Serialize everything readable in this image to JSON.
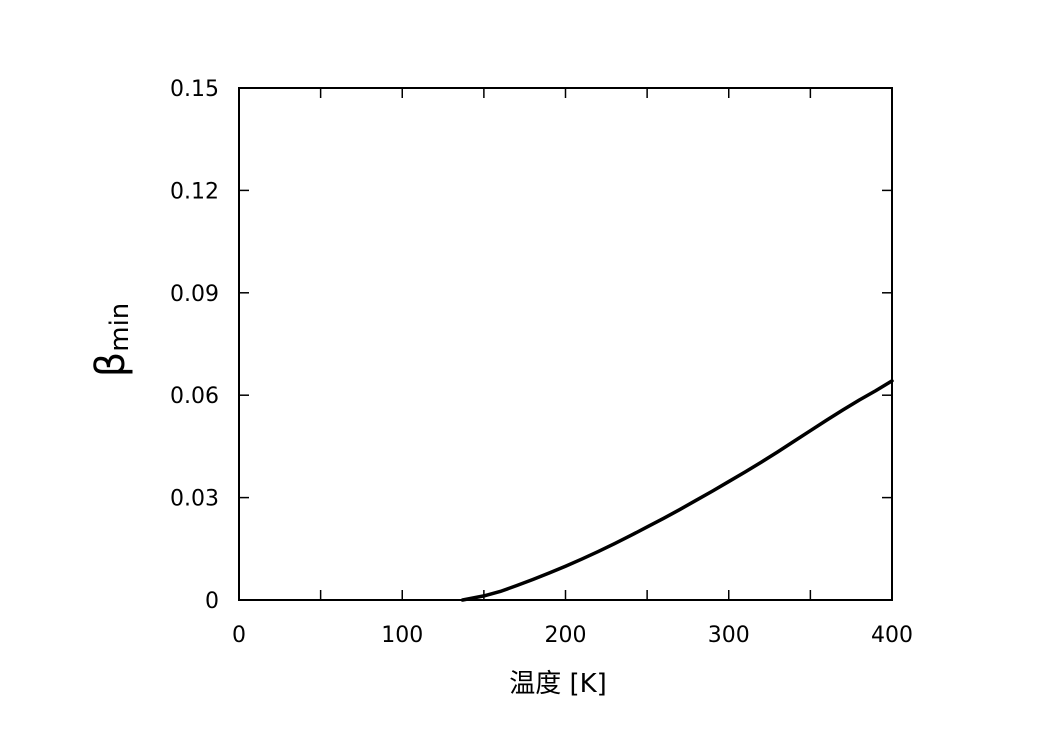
{
  "chart_data": {
    "type": "line",
    "title": "",
    "xlabel": "温度 [K]",
    "ylabel_main": "β",
    "ylabel_sub": "min",
    "xlim": [
      0,
      400
    ],
    "ylim": [
      0,
      0.15
    ],
    "xticks": [
      0,
      100,
      200,
      300,
      400
    ],
    "xtick_labels": [
      "0",
      "100",
      "200",
      "300",
      "400"
    ],
    "xminor": [
      50,
      150,
      250,
      350
    ],
    "yticks": [
      0,
      0.03,
      0.06,
      0.09,
      0.12,
      0.15
    ],
    "ytick_labels": [
      "0",
      "0.03",
      "0.06",
      "0.09",
      "0.12",
      "0.15"
    ],
    "grid": false,
    "line_color": "#000000",
    "series": [
      {
        "x": [
          137,
          150,
          160,
          170,
          180,
          190,
          200,
          210,
          220,
          230,
          240,
          250,
          260,
          270,
          280,
          290,
          300,
          310,
          320,
          330,
          340,
          350,
          360,
          370,
          380,
          390,
          400
        ],
        "y": [
          0,
          0.0012,
          0.0025,
          0.0042,
          0.006,
          0.0079,
          0.0099,
          0.012,
          0.0142,
          0.0165,
          0.0189,
          0.0214,
          0.0239,
          0.0265,
          0.0292,
          0.0319,
          0.0347,
          0.0375,
          0.0404,
          0.0434,
          0.0465,
          0.0496,
          0.0527,
          0.0557,
          0.0586,
          0.0613,
          0.0642
        ]
      }
    ]
  }
}
